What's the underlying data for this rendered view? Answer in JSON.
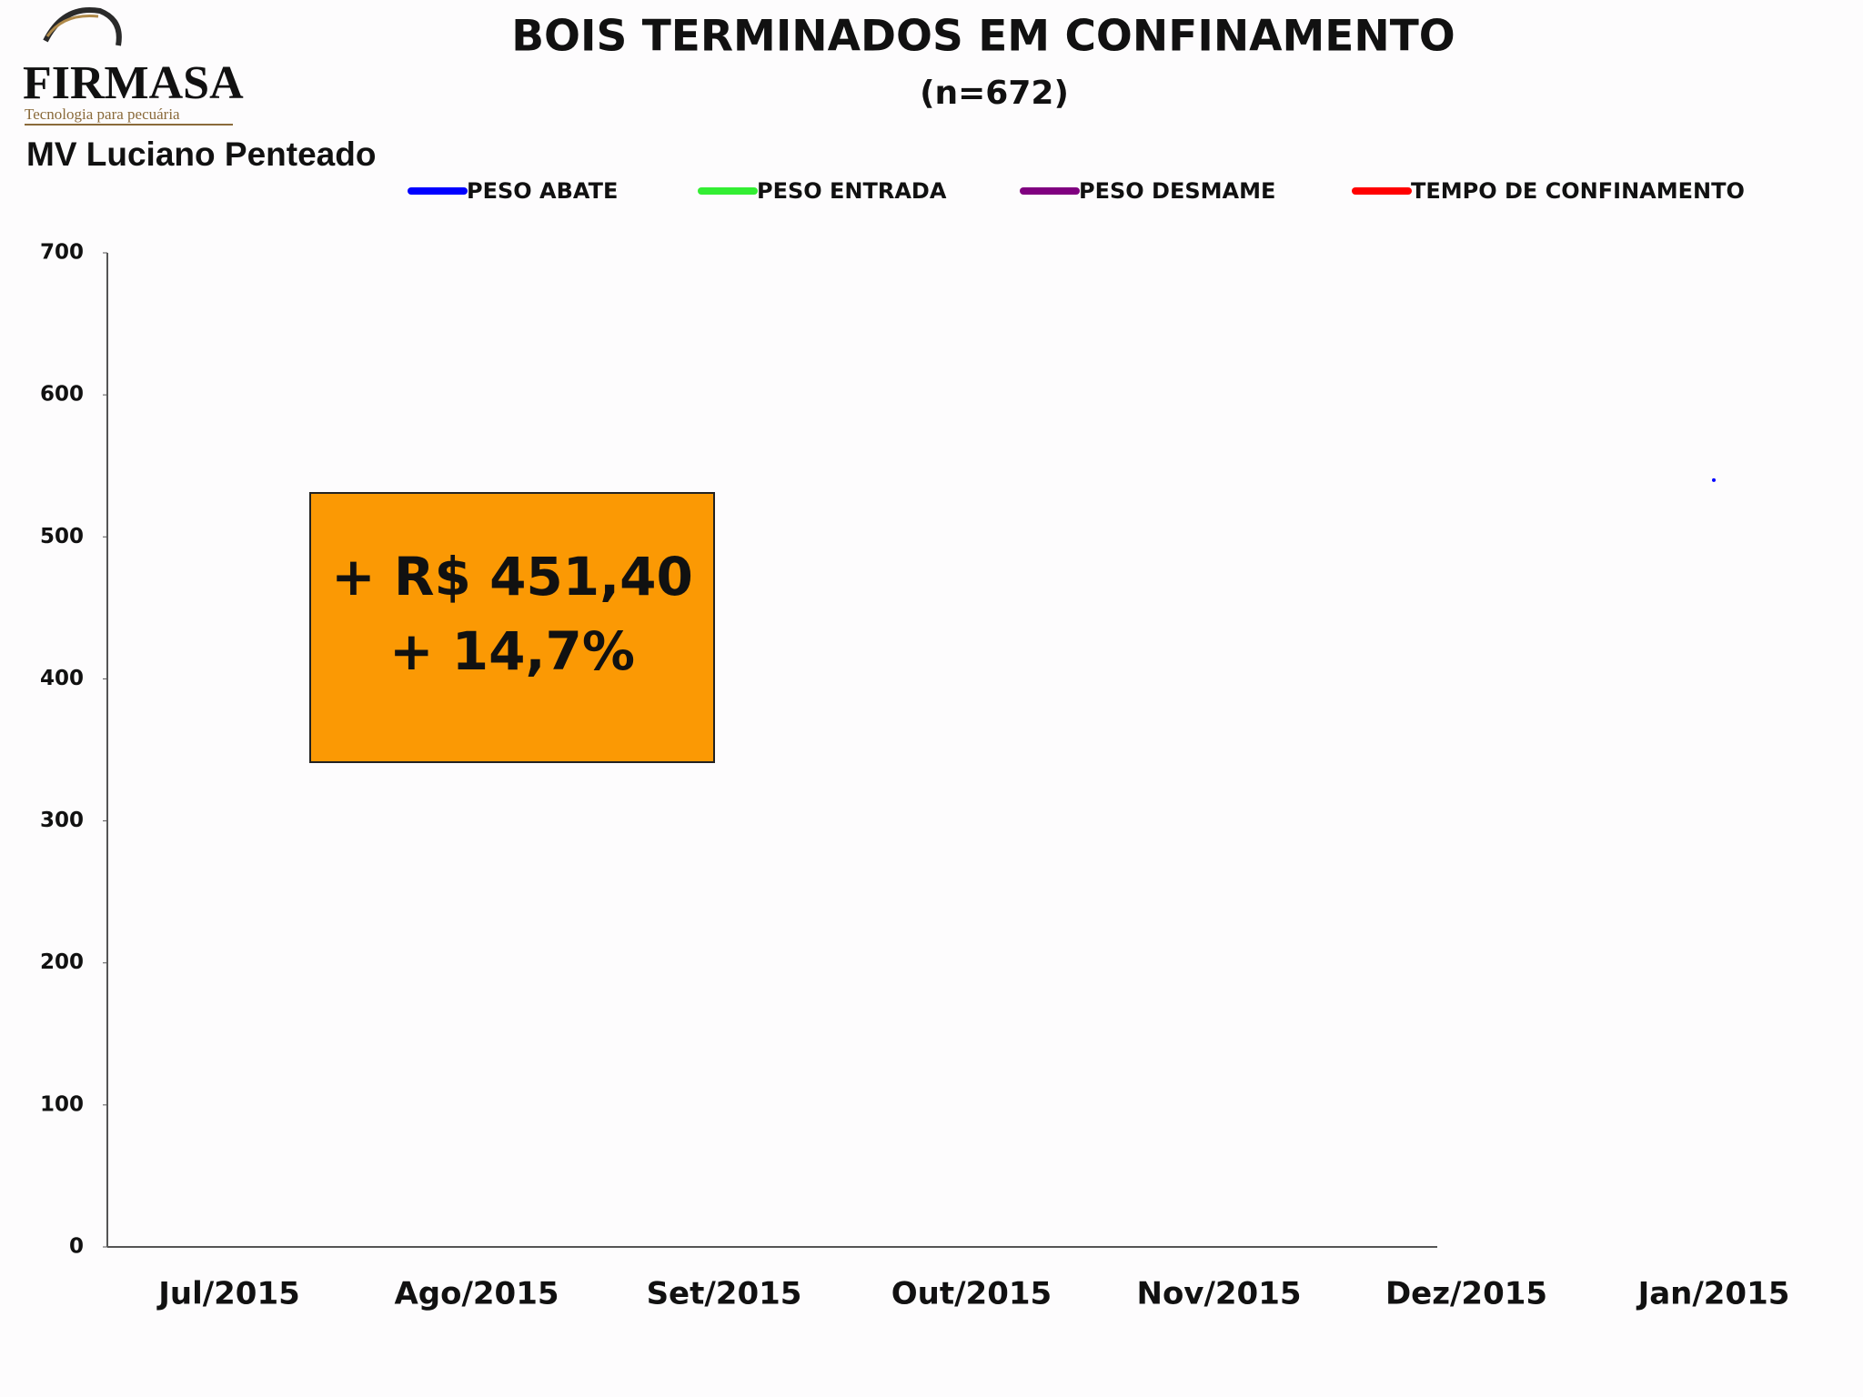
{
  "chart_data": {
    "type": "line",
    "logo_name": "FIRMASA",
    "logo_tagline": "Tecnologia para pecuária",
    "author": "MV Luciano Penteado",
    "title": "BOIS TERMINADOS EM CONFINAMENTO",
    "subtitle": "(n=672)",
    "categories": [
      "Jul/2015",
      "Ago/2015",
      "Set/2015",
      "Out/2015",
      "Nov/2015",
      "Dez/2015",
      "Jan/2015"
    ],
    "series": [
      {
        "name": "PESO ABATE",
        "color": "#0000ff",
        "values": [
          null,
          null,
          null,
          null,
          null,
          null,
          540
        ]
      },
      {
        "name": "PESO ENTRADA",
        "color": "#33ee33",
        "values": [
          null,
          null,
          null,
          null,
          null,
          null,
          null
        ]
      },
      {
        "name": "PESO DESMAME",
        "color": "#800080",
        "values": [
          null,
          null,
          null,
          null,
          null,
          null,
          null
        ]
      },
      {
        "name": "TEMPO DE CONFINAMENTO",
        "color": "#ff0000",
        "values": [
          null,
          null,
          null,
          null,
          null,
          null,
          null
        ]
      }
    ],
    "ylim": [
      0,
      700
    ],
    "yticks": [
      0,
      100,
      200,
      300,
      400,
      500,
      600,
      700
    ],
    "annotations": [
      "+ R$ 451,40",
      "+ 14,7%"
    ],
    "annotation_color": "#fb9904"
  }
}
